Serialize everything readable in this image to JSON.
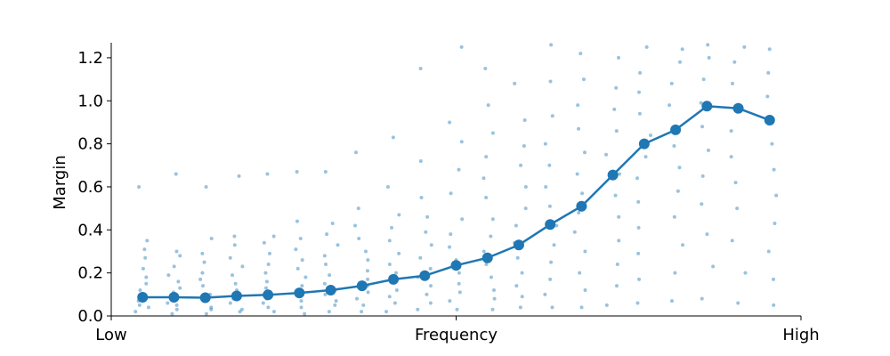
{
  "chart_data": {
    "type": "strip_line",
    "ylabel": "Margin",
    "color": "#1f77b4",
    "grid": false,
    "xlim": [
      -1,
      21
    ],
    "xticks": [
      {
        "value": -1,
        "label": "Low"
      },
      {
        "value": 10,
        "label": "Frequency"
      },
      {
        "value": 21,
        "label": "High"
      }
    ],
    "ylim": [
      0,
      1.27
    ],
    "yticks": [
      {
        "value": 0,
        "label": "0.0"
      },
      0.2,
      0.4,
      0.6,
      0.8,
      {
        "value": 1,
        "label": "1.0"
      },
      1.2
    ],
    "values": [
      0.087,
      0.087,
      0.085,
      0.093,
      0.098,
      0.107,
      0.12,
      0.14,
      0.17,
      0.187,
      0.235,
      0.27,
      0.33,
      0.425,
      0.51,
      0.655,
      0.8,
      0.865,
      0.975,
      0.965,
      0.91
    ],
    "strips": [
      [
        0.02,
        0.04,
        0.05,
        0.07,
        0.08,
        0.1,
        0.12,
        0.15,
        0.18,
        0.22,
        0.27,
        0.31,
        0.35,
        0.6
      ],
      [
        0.01,
        0.03,
        0.05,
        0.06,
        0.09,
        0.11,
        0.13,
        0.16,
        0.19,
        0.23,
        0.28,
        0.3,
        0.66
      ],
      [
        0.01,
        0.03,
        0.04,
        0.07,
        0.08,
        0.1,
        0.14,
        0.17,
        0.2,
        0.25,
        0.29,
        0.36,
        0.6
      ],
      [
        0.02,
        0.03,
        0.06,
        0.08,
        0.1,
        0.12,
        0.15,
        0.19,
        0.23,
        0.27,
        0.33,
        0.37,
        0.65
      ],
      [
        0.02,
        0.04,
        0.06,
        0.08,
        0.1,
        0.13,
        0.16,
        0.2,
        0.24,
        0.29,
        0.34,
        0.37,
        0.66
      ],
      [
        0.01,
        0.04,
        0.07,
        0.09,
        0.11,
        0.14,
        0.18,
        0.22,
        0.26,
        0.31,
        0.36,
        0.44,
        0.67
      ],
      [
        0.02,
        0.05,
        0.07,
        0.1,
        0.12,
        0.15,
        0.19,
        0.24,
        0.28,
        0.33,
        0.38,
        0.43,
        0.67
      ],
      [
        0.02,
        0.05,
        0.08,
        0.11,
        0.14,
        0.17,
        0.21,
        0.26,
        0.3,
        0.36,
        0.42,
        0.5,
        0.76
      ],
      [
        0.02,
        0.06,
        0.09,
        0.12,
        0.16,
        0.2,
        0.24,
        0.29,
        0.35,
        0.41,
        0.47,
        0.6,
        0.83
      ],
      [
        0.03,
        0.06,
        0.1,
        0.14,
        0.18,
        0.22,
        0.27,
        0.33,
        0.39,
        0.46,
        0.55,
        0.72,
        1.15
      ],
      [
        0.03,
        0.07,
        0.11,
        0.15,
        0.2,
        0.26,
        0.32,
        0.38,
        0.45,
        0.57,
        0.68,
        0.81,
        0.9,
        1.25
      ],
      [
        0.03,
        0.08,
        0.12,
        0.18,
        0.24,
        0.3,
        0.37,
        0.45,
        0.55,
        0.64,
        0.74,
        0.85,
        0.98,
        1.15
      ],
      [
        0.04,
        0.09,
        0.14,
        0.2,
        0.27,
        0.34,
        0.42,
        0.5,
        0.6,
        0.7,
        0.79,
        0.91,
        1.08
      ],
      [
        0.04,
        0.1,
        0.17,
        0.25,
        0.33,
        0.42,
        0.51,
        0.6,
        0.7,
        0.8,
        0.93,
        1.09,
        1.26
      ],
      [
        0.04,
        0.12,
        0.2,
        0.3,
        0.39,
        0.48,
        0.57,
        0.66,
        0.76,
        0.87,
        0.98,
        1.1,
        1.22
      ],
      [
        0.05,
        0.14,
        0.24,
        0.35,
        0.46,
        0.56,
        0.66,
        0.75,
        0.86,
        0.96,
        1.06,
        1.2
      ],
      [
        0.06,
        0.17,
        0.29,
        0.41,
        0.53,
        0.64,
        0.74,
        0.84,
        0.94,
        1.04,
        1.13,
        1.25
      ],
      [
        0.07,
        0.2,
        0.33,
        0.46,
        0.58,
        0.69,
        0.79,
        0.88,
        0.98,
        1.08,
        1.18,
        1.24
      ],
      [
        0.08,
        0.23,
        0.38,
        0.52,
        0.65,
        0.77,
        0.88,
        0.99,
        1.1,
        1.2,
        1.26
      ],
      [
        0.06,
        0.2,
        0.35,
        0.5,
        0.62,
        0.74,
        0.86,
        0.97,
        1.08,
        1.18,
        1.25
      ],
      [
        0.05,
        0.17,
        0.3,
        0.43,
        0.56,
        0.68,
        0.8,
        0.91,
        1.02,
        1.13,
        1.24
      ]
    ]
  }
}
